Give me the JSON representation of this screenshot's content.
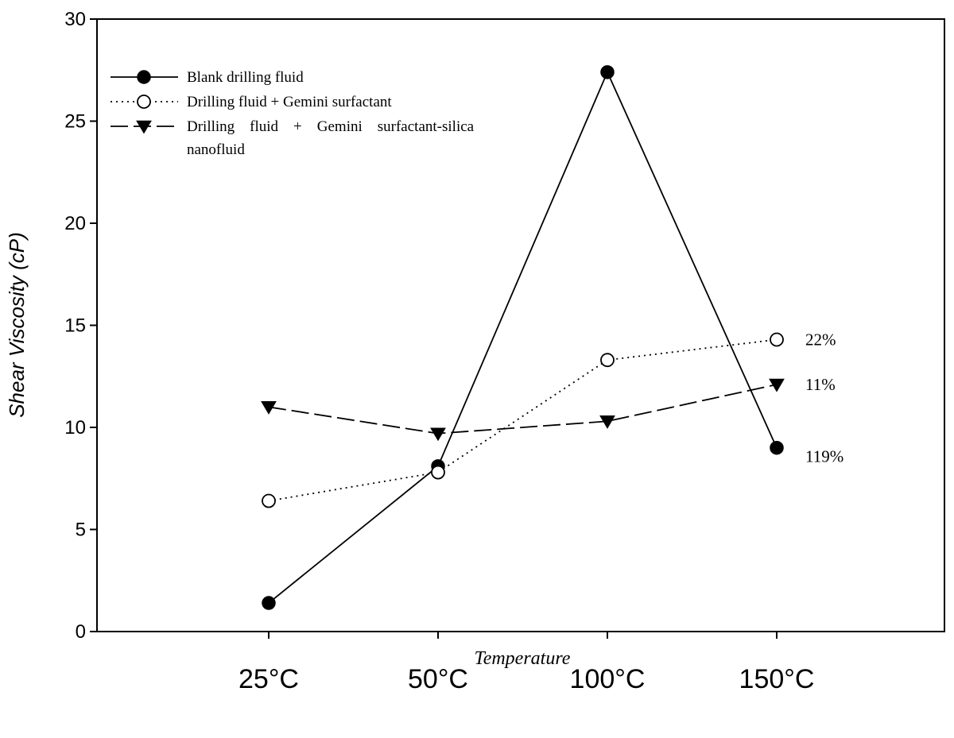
{
  "chart_data": {
    "type": "line",
    "title": "",
    "xlabel": "Temperature",
    "ylabel": "Shear Viscosity (cP)",
    "categories": [
      "25",
      "50",
      "100",
      "150"
    ],
    "category_unit": "°C",
    "ylim": [
      0,
      30
    ],
    "yticks": [
      "0",
      "5",
      "10",
      "15",
      "20",
      "25",
      "30"
    ],
    "grid": false,
    "legend_position": "top-left",
    "series": [
      {
        "name": "Blank drilling fluid",
        "values": [
          1.4,
          8.1,
          27.4,
          9.0
        ],
        "marker": "filled-circle",
        "line": "solid",
        "color": "#000000"
      },
      {
        "name": "Drilling fluid + Gemini surfactant",
        "values": [
          6.4,
          7.8,
          13.3,
          14.3
        ],
        "marker": "open-circle",
        "line": "dotted",
        "color": "#000000"
      },
      {
        "name": "Drilling fluid  +  Gemini  surfactant-silica nanofluid",
        "legend_lines": [
          "Drilling    fluid    +    Gemini    surfactant-silica",
          "nanofluid"
        ],
        "values": [
          11.0,
          9.7,
          10.3,
          12.1
        ],
        "marker": "filled-triangle-down",
        "line": "dashed",
        "color": "#000000"
      }
    ],
    "annotations": [
      {
        "text": "22%",
        "category": "150",
        "y": 14.3,
        "series": 1
      },
      {
        "text": "11%",
        "category": "150",
        "y": 12.1,
        "series": 2
      },
      {
        "text": "119%",
        "category": "150",
        "y": 9.0,
        "series": 0
      }
    ]
  }
}
